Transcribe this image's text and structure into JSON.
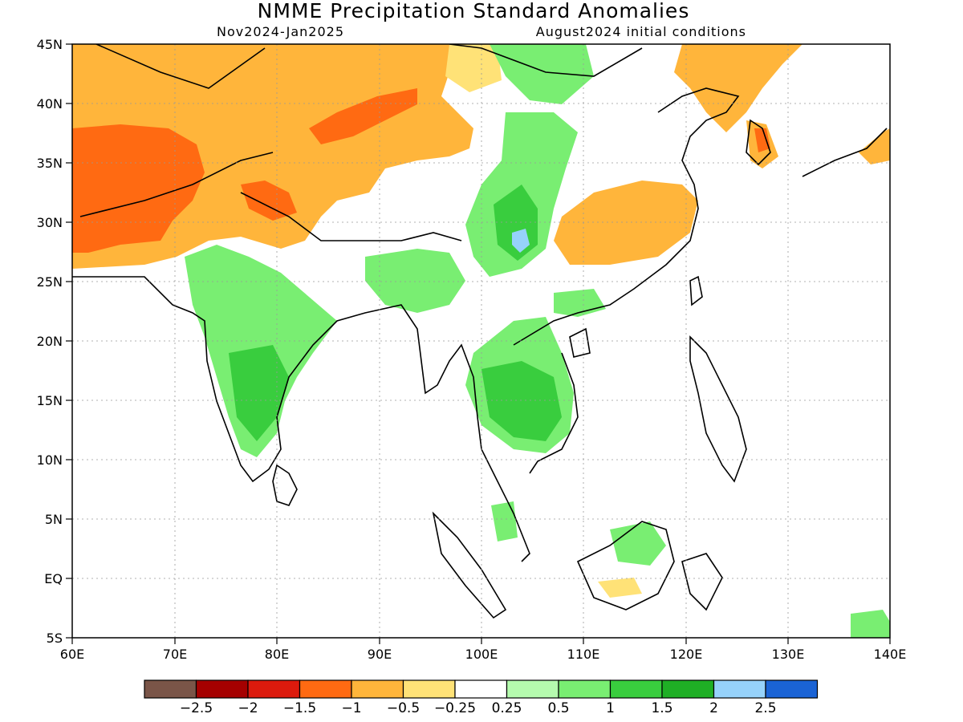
{
  "title": "NMME Precipitation Standard Anomalies",
  "subtitle_left": "Nov2024-Jan2025",
  "subtitle_right": "August2024 initial conditions",
  "x_ticks": [
    "60E",
    "70E",
    "80E",
    "90E",
    "100E",
    "110E",
    "120E",
    "130E",
    "140E"
  ],
  "y_ticks": [
    "45N",
    "40N",
    "35N",
    "30N",
    "25N",
    "20N",
    "15N",
    "10N",
    "5N",
    "EQ",
    "5S"
  ],
  "colorbar": {
    "colors": [
      "#7a5548",
      "#a50000",
      "#dc1a0d",
      "#ff6a12",
      "#ffb53b",
      "#ffe277",
      "#ffffff",
      "#b5fbae",
      "#79ee72",
      "#39cd3e",
      "#1faf25",
      "#96d2fa",
      "#1a63d5"
    ],
    "labels": [
      "-2.5",
      "-2",
      "-1.5",
      "-1",
      "-0.5",
      "-0.25",
      "0.25",
      "0.5",
      "1",
      "1.5",
      "2",
      "2.5"
    ]
  },
  "regions": [
    {
      "level": "-0.5",
      "color": "#ffb53b"
    },
    {
      "level": "-1",
      "color": "#ff6a12"
    },
    {
      "level": "-0.25",
      "color": "#ffe277"
    },
    {
      "level": "0.5",
      "color": "#79ee72"
    },
    {
      "level": "1",
      "color": "#39cd3e"
    },
    {
      "level": "2",
      "color": "#96d2fa"
    }
  ]
}
